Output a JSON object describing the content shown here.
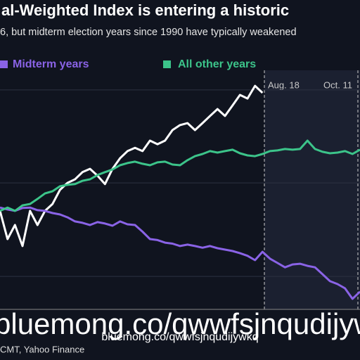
{
  "chart_data": {
    "type": "line",
    "title": "al-Weighted Index is entering a historic",
    "subtitle": "6, but midterm election years since 1990 have typically weakened",
    "annotations": [
      "Aug. 18",
      "Oct. 11"
    ],
    "watermark": "bluemong.co/qwwfsjnqudijywkq",
    "source": "CMT, Yahoo Finance",
    "ylim": [
      0,
      100
    ],
    "yticks": [
      13.8,
      52.9,
      91.8
    ],
    "grid": true,
    "series": [
      {
        "color": "#ffffff",
        "values": [
          41.2,
          29.4,
          35.3,
          26.5,
          41.2,
          35.3,
          41.2,
          44.1,
          50,
          52.9,
          54.4,
          57.4,
          58.8,
          55.9,
          52.4,
          58.8,
          63.2,
          66.2,
          67.6,
          66.2,
          70.6,
          69.1,
          70.6,
          75,
          77.1,
          77.9,
          75,
          77.9,
          80.9,
          83.8,
          80.9,
          85.3,
          89.7,
          88.2,
          93.5,
          90.6,
          null,
          null,
          null,
          null,
          null,
          null,
          null,
          null,
          null,
          null,
          null,
          null,
          null
        ]
      },
      {
        "name": "Midterm years",
        "color": "#8a63e6",
        "values": [
          42.6,
          41.8,
          41.2,
          42.4,
          42.6,
          41.5,
          41.2,
          40.3,
          39.7,
          38.5,
          36.8,
          36.2,
          35.3,
          36.5,
          35.9,
          35.0,
          36.8,
          35.6,
          35.3,
          32.5,
          29.4,
          29.0,
          27.9,
          27.5,
          26.5,
          27.1,
          26.5,
          25.8,
          26.5,
          25.6,
          25.0,
          24.4,
          23.5,
          22.4,
          20.6,
          24.1,
          21.2,
          19.4,
          17.6,
          18.8,
          19.1,
          18.2,
          17.6,
          14.7,
          11.8,
          10.6,
          8.8,
          4.4,
          7.4
        ]
      },
      {
        "name": "All other years",
        "color": "#3cc48a",
        "values": [
          41.2,
          42.6,
          41.2,
          43.5,
          44.1,
          46.2,
          48.5,
          49.4,
          51.5,
          52.1,
          52.4,
          53.8,
          54.4,
          56.2,
          57.4,
          58.5,
          60.3,
          61.2,
          61.8,
          60.9,
          60.3,
          61.5,
          61.8,
          60.6,
          60.3,
          62.4,
          64.1,
          65.0,
          66.2,
          65.6,
          66.2,
          66.8,
          65.3,
          64.4,
          64.1,
          65.0,
          66.2,
          66.5,
          67.1,
          66.8,
          67.1,
          70.6,
          67.1,
          65.9,
          65.3,
          65.6,
          66.2,
          65.0,
          66.8
        ]
      }
    ]
  }
}
